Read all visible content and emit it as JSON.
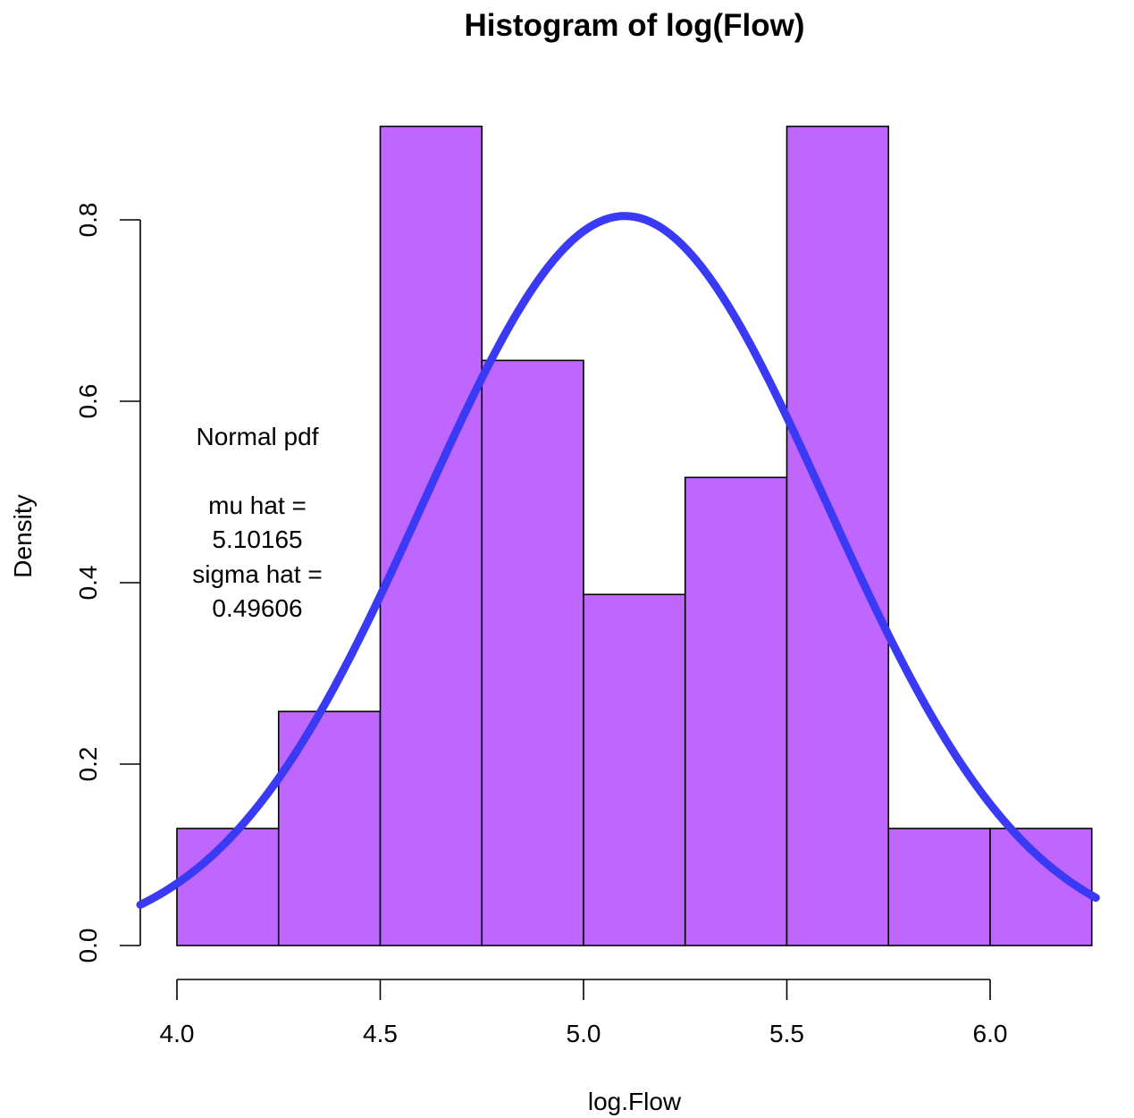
{
  "chart_data": {
    "type": "bar",
    "title": "Histogram of log(Flow)",
    "xlabel": "log.Flow",
    "ylabel": "Density",
    "breaks": [
      4.0,
      4.25,
      4.5,
      4.75,
      5.0,
      5.25,
      5.5,
      5.75,
      6.0,
      6.25
    ],
    "values": [
      0.129,
      0.258,
      0.903,
      0.645,
      0.387,
      0.516,
      0.903,
      0.129,
      0.129
    ],
    "xlim": [
      3.91,
      6.26
    ],
    "ylim": [
      0,
      0.903
    ],
    "x_ticks": [
      4.0,
      4.5,
      5.0,
      5.5,
      6.0
    ],
    "x_tick_labels": [
      "4.0",
      "4.5",
      "5.0",
      "5.5",
      "6.0"
    ],
    "y_ticks": [
      0.0,
      0.2,
      0.4,
      0.6,
      0.8
    ],
    "y_tick_labels": [
      "0.0",
      "0.2",
      "0.4",
      "0.6",
      "0.8"
    ],
    "overlay": {
      "type": "normal_pdf",
      "mu": 5.10165,
      "sigma": 0.49606,
      "color": "#3a3af5"
    },
    "bar_color": "#bf66ff",
    "annotation": {
      "lines": [
        "Normal pdf",
        "",
        "mu hat =",
        "5.10165",
        "sigma hat =",
        "0.49606"
      ]
    },
    "grid": false
  }
}
